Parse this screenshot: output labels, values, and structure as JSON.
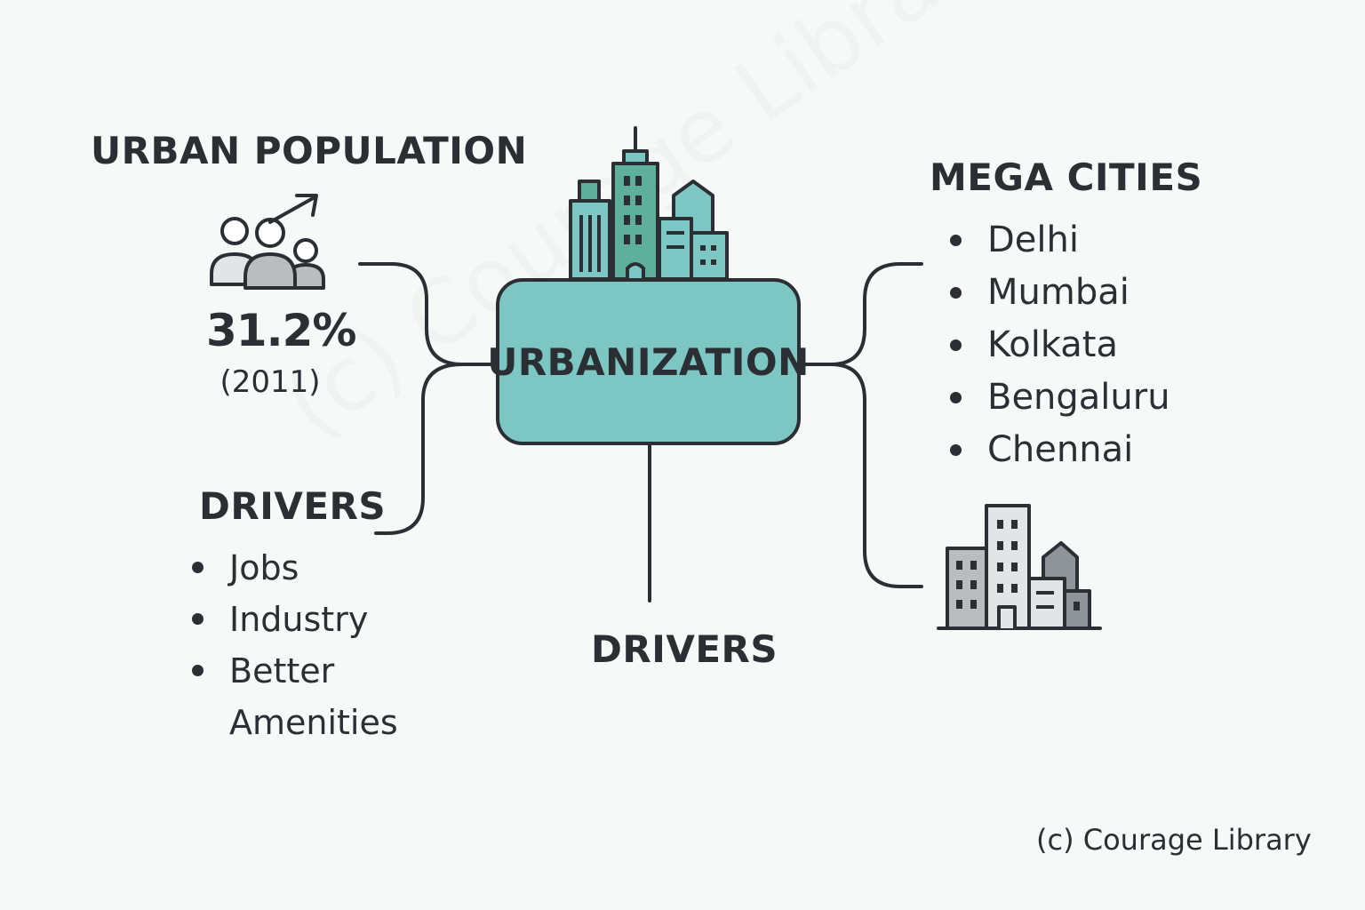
{
  "urban_population": {
    "heading": "URBAN POPULATION",
    "value": "31.2%",
    "year": "(2011)"
  },
  "center": {
    "label": "URBANIZATION"
  },
  "drivers_left": {
    "heading": "DRIVERS",
    "items": [
      "Jobs",
      "Industry",
      "Better Amenities"
    ]
  },
  "drivers_bottom": {
    "heading": "DRIVERS"
  },
  "mega_cities": {
    "heading": "MEGA CITIES",
    "items": [
      "Delhi",
      "Mumbai",
      "Kolkata",
      "Bengaluru",
      "Chennai"
    ]
  },
  "watermark": "(c) Courage Library",
  "credit": "(c) Courage Library",
  "colors": {
    "teal": "#7cc7c3",
    "teal_dark": "#5fb09a",
    "outline": "#2b2f33",
    "gray_light": "#e3e4e5",
    "gray_mid": "#b9bdc0",
    "gray_dark": "#8f9498",
    "background": "#f7f8f8"
  },
  "icons": [
    "people-growth-icon",
    "city-skyline-icon",
    "buildings-icon"
  ]
}
